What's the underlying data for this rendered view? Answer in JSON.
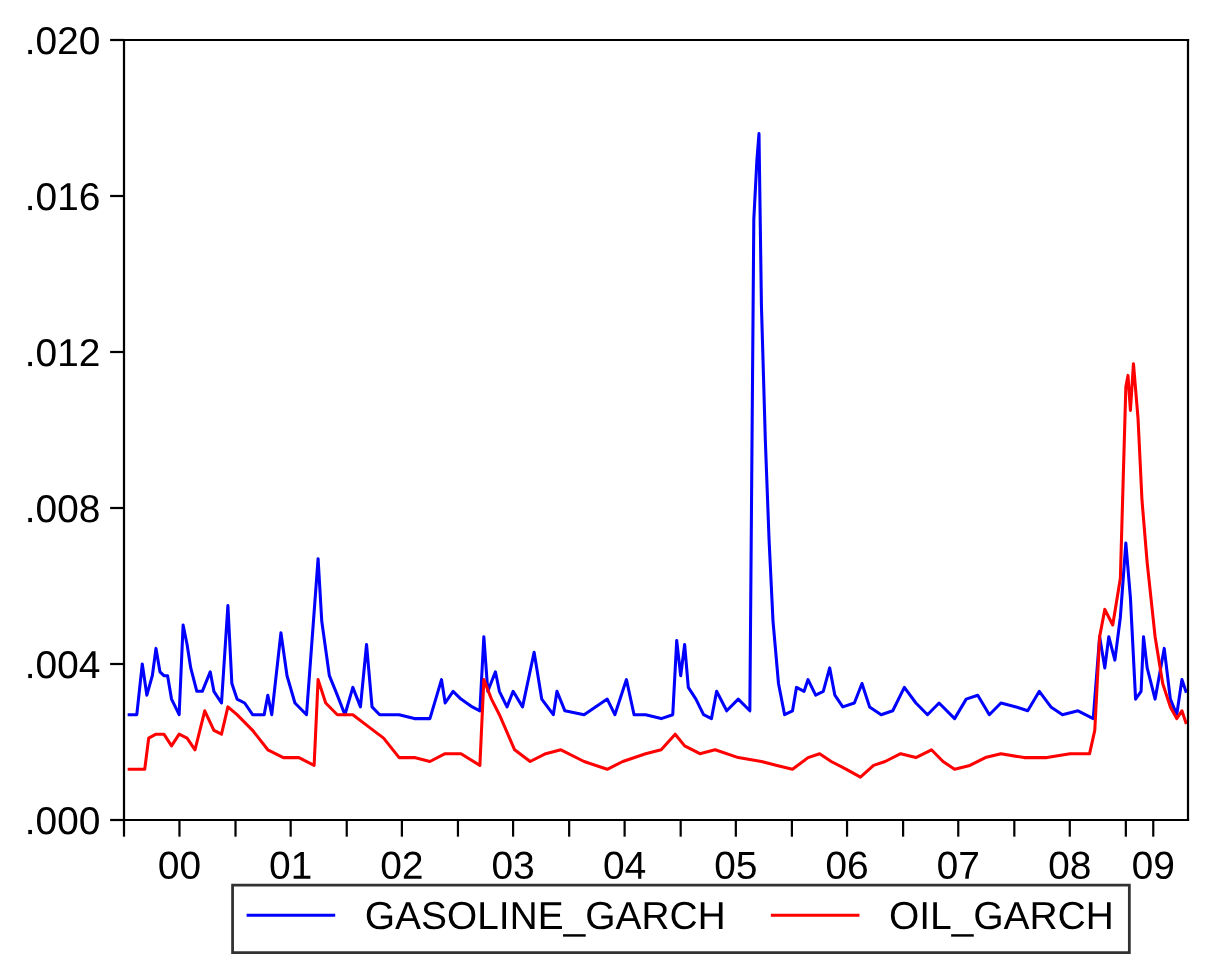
{
  "chart_data": {
    "type": "line",
    "legend": "bottom",
    "grid": false,
    "xlim": [
      "2000-01-01",
      "2009-07-24"
    ],
    "xticks": [
      {
        "value": "2000-01-01",
        "label": null
      },
      {
        "value": "2000-07-01",
        "label": "00"
      },
      {
        "value": "2001-01-01",
        "label": null
      },
      {
        "value": "2001-07-01",
        "label": "01"
      },
      {
        "value": "2002-01-01",
        "label": null
      },
      {
        "value": "2002-07-01",
        "label": "02"
      },
      {
        "value": "2003-01-01",
        "label": null
      },
      {
        "value": "2003-07-01",
        "label": "03"
      },
      {
        "value": "2004-01-01",
        "label": null
      },
      {
        "value": "2004-07-01",
        "label": "04"
      },
      {
        "value": "2005-01-01",
        "label": null
      },
      {
        "value": "2005-07-01",
        "label": "05"
      },
      {
        "value": "2006-01-01",
        "label": null
      },
      {
        "value": "2006-07-01",
        "label": "06"
      },
      {
        "value": "2007-01-01",
        "label": null
      },
      {
        "value": "2007-07-01",
        "label": "07"
      },
      {
        "value": "2008-01-01",
        "label": null
      },
      {
        "value": "2008-07-01",
        "label": "08"
      },
      {
        "value": "2009-01-01",
        "label": null
      },
      {
        "value": "2009-04-01",
        "label": "09"
      }
    ],
    "ylim": [
      0,
      0.02
    ],
    "yticks": [
      {
        "value": 0,
        "label": ".000"
      },
      {
        "value": 0.004,
        "label": ".004"
      },
      {
        "value": 0.008,
        "label": ".008"
      },
      {
        "value": 0.012,
        "label": ".012"
      },
      {
        "value": 0.016,
        "label": ".016"
      },
      {
        "value": 0.02,
        "label": ".020"
      }
    ],
    "series": [
      {
        "name": "GASOLINE_GARCH",
        "color": "#0000ff",
        "x": [
          "2000-01-18",
          "2000-02-12",
          "2000-03-01",
          "2000-03-16",
          "2000-04-03",
          "2000-04-15",
          "2000-04-28",
          "2000-05-11",
          "2000-05-23",
          "2000-06-05",
          "2000-06-30",
          "2000-07-13",
          "2000-07-26",
          "2000-08-07",
          "2000-08-27",
          "2000-09-14",
          "2000-10-10",
          "2000-10-22",
          "2000-11-16",
          "2000-12-07",
          "2000-12-20",
          "2001-01-06",
          "2001-01-31",
          "2001-02-26",
          "2001-04-05",
          "2001-04-17",
          "2001-04-30",
          "2001-05-30",
          "2001-06-19",
          "2001-07-15",
          "2001-08-22",
          "2001-09-29",
          "2001-10-11",
          "2001-11-05",
          "2001-12-01",
          "2001-12-26",
          "2002-01-21",
          "2002-02-15",
          "2002-03-07",
          "2002-03-25",
          "2002-04-19",
          "2002-05-15",
          "2002-06-22",
          "2002-08-11",
          "2002-10-01",
          "2002-11-08",
          "2002-11-20",
          "2002-12-16",
          "2003-01-11",
          "2003-02-17",
          "2003-03-14",
          "2003-03-27",
          "2003-04-09",
          "2003-05-04",
          "2003-05-17",
          "2003-06-11",
          "2003-07-01",
          "2003-08-01",
          "2003-09-08",
          "2003-10-03",
          "2003-11-10",
          "2003-11-22",
          "2003-12-18",
          "2004-02-19",
          "2004-05-05",
          "2004-05-30",
          "2004-07-07",
          "2004-08-01",
          "2004-09-08",
          "2004-10-29",
          "2004-12-06",
          "2004-12-19",
          "2005-01-01",
          "2005-01-14",
          "2005-01-26",
          "2005-02-20",
          "2005-03-17",
          "2005-04-12",
          "2005-04-29",
          "2005-06-01",
          "2005-07-09",
          "2005-08-16",
          "2005-08-29",
          "2005-09-08",
          "2005-09-15",
          "2005-09-23",
          "2005-10-06",
          "2005-10-18",
          "2005-10-31",
          "2005-11-18",
          "2005-12-08",
          "2006-01-03",
          "2006-01-16",
          "2006-02-10",
          "2006-02-23",
          "2006-03-20",
          "2006-04-14",
          "2006-05-05",
          "2006-05-22",
          "2006-06-17",
          "2006-07-25",
          "2006-08-19",
          "2006-09-13",
          "2006-10-21",
          "2006-11-28",
          "2007-01-05",
          "2007-02-12",
          "2007-03-22",
          "2007-04-29",
          "2007-06-19",
          "2007-07-27",
          "2007-09-03",
          "2007-10-11",
          "2007-11-18",
          "2008-01-07",
          "2008-02-14",
          "2008-03-23",
          "2008-04-30",
          "2008-06-07",
          "2008-07-28",
          "2008-09-16",
          "2008-10-07",
          "2008-10-24",
          "2008-11-06",
          "2008-11-26",
          "2008-12-14",
          "2009-01-01",
          "2009-01-16",
          "2009-02-02",
          "2009-02-20",
          "2009-02-28",
          "2009-03-12",
          "2009-04-07",
          "2009-05-07",
          "2009-05-27",
          "2009-06-17",
          "2009-07-04",
          "2009-07-17"
        ],
        "values": [
          0.0027,
          0.0027,
          0.004,
          0.0032,
          0.0037,
          0.0044,
          0.0038,
          0.0037,
          0.0037,
          0.0031,
          0.0027,
          0.005,
          0.0045,
          0.0039,
          0.0033,
          0.0033,
          0.0038,
          0.0033,
          0.003,
          0.0055,
          0.0035,
          0.0031,
          0.003,
          0.0027,
          0.0027,
          0.0032,
          0.0027,
          0.0048,
          0.0037,
          0.003,
          0.0027,
          0.0067,
          0.0051,
          0.0037,
          0.0032,
          0.0027,
          0.0034,
          0.0029,
          0.0045,
          0.0029,
          0.0027,
          0.0027,
          0.0027,
          0.0026,
          0.0026,
          0.0036,
          0.003,
          0.0033,
          0.0031,
          0.0029,
          0.0028,
          0.0047,
          0.0033,
          0.0038,
          0.0033,
          0.0029,
          0.0033,
          0.0029,
          0.0043,
          0.0031,
          0.0027,
          0.0033,
          0.0028,
          0.0027,
          0.0031,
          0.0027,
          0.0036,
          0.0027,
          0.0027,
          0.0026,
          0.0027,
          0.0046,
          0.0037,
          0.0045,
          0.0034,
          0.0031,
          0.0027,
          0.0026,
          0.0033,
          0.0028,
          0.0031,
          0.0028,
          0.0154,
          0.0169,
          0.0176,
          0.0132,
          0.0097,
          0.0072,
          0.0051,
          0.0035,
          0.0027,
          0.0028,
          0.0034,
          0.0033,
          0.0036,
          0.0032,
          0.0033,
          0.0039,
          0.0032,
          0.0029,
          0.003,
          0.0035,
          0.0029,
          0.0027,
          0.0028,
          0.0034,
          0.003,
          0.0027,
          0.003,
          0.0026,
          0.0031,
          0.0032,
          0.0027,
          0.003,
          0.0029,
          0.0028,
          0.0033,
          0.0029,
          0.0027,
          0.0028,
          0.0026,
          0.0047,
          0.0039,
          0.0047,
          0.0041,
          0.0052,
          0.0071,
          0.0057,
          0.0031,
          0.0033,
          0.0047,
          0.0039,
          0.0031,
          0.0044,
          0.0031,
          0.0027,
          0.0036,
          0.0033
        ]
      },
      {
        "name": "OIL_GARCH",
        "color": "#ff0000",
        "x": [
          "2000-01-18",
          "2000-02-12",
          "2000-03-09",
          "2000-03-22",
          "2000-04-15",
          "2000-05-11",
          "2000-06-05",
          "2000-06-30",
          "2000-07-26",
          "2000-08-21",
          "2000-09-22",
          "2000-10-22",
          "2000-11-16",
          "2000-12-07",
          "2001-01-06",
          "2001-02-26",
          "2001-04-17",
          "2001-06-07",
          "2001-07-28",
          "2001-09-16",
          "2001-09-29",
          "2001-10-24",
          "2001-12-01",
          "2002-01-21",
          "2002-03-12",
          "2002-05-02",
          "2002-06-22",
          "2002-08-11",
          "2002-10-01",
          "2002-11-20",
          "2003-01-11",
          "2003-03-14",
          "2003-03-27",
          "2003-04-21",
          "2003-05-17",
          "2003-07-06",
          "2003-08-26",
          "2003-10-16",
          "2003-12-05",
          "2004-02-19",
          "2004-05-05",
          "2004-06-25",
          "2004-09-08",
          "2004-10-29",
          "2004-12-14",
          "2005-01-14",
          "2005-03-05",
          "2005-04-24",
          "2005-07-09",
          "2005-09-23",
          "2005-11-13",
          "2006-01-03",
          "2006-02-23",
          "2006-04-02",
          "2006-05-10",
          "2006-06-29",
          "2006-08-14",
          "2006-09-26",
          "2006-11-03",
          "2006-12-24",
          "2007-02-12",
          "2007-04-04",
          "2007-05-12",
          "2007-06-19",
          "2007-08-08",
          "2007-09-28",
          "2007-11-18",
          "2008-02-02",
          "2008-04-17",
          "2008-07-02",
          "2008-09-04",
          "2008-09-21",
          "2008-10-07",
          "2008-10-24",
          "2008-11-19",
          "2008-12-14",
          "2009-01-01",
          "2009-01-08",
          "2009-01-16",
          "2009-01-26",
          "2009-02-10",
          "2009-02-23",
          "2009-03-12",
          "2009-04-07",
          "2009-05-02",
          "2009-05-27",
          "2009-06-17",
          "2009-07-04",
          "2009-07-17"
        ],
        "values": [
          0.0013,
          0.0013,
          0.0013,
          0.0021,
          0.0022,
          0.0022,
          0.0019,
          0.0022,
          0.0021,
          0.0018,
          0.0028,
          0.0023,
          0.0022,
          0.0029,
          0.0027,
          0.0023,
          0.0018,
          0.0016,
          0.0016,
          0.0014,
          0.0036,
          0.003,
          0.0027,
          0.0027,
          0.0024,
          0.0021,
          0.0016,
          0.0016,
          0.0015,
          0.0017,
          0.0017,
          0.0014,
          0.0036,
          0.0031,
          0.0027,
          0.0018,
          0.0015,
          0.0017,
          0.0018,
          0.0015,
          0.0013,
          0.0015,
          0.0017,
          0.0018,
          0.0022,
          0.0019,
          0.0017,
          0.0018,
          0.0016,
          0.0015,
          0.0014,
          0.0013,
          0.0016,
          0.0017,
          0.0015,
          0.0013,
          0.0011,
          0.0014,
          0.0015,
          0.0017,
          0.0016,
          0.0018,
          0.0015,
          0.0013,
          0.0014,
          0.0016,
          0.0017,
          0.0016,
          0.0016,
          0.0017,
          0.0017,
          0.0023,
          0.0047,
          0.0054,
          0.005,
          0.0062,
          0.0111,
          0.0114,
          0.0105,
          0.0117,
          0.0103,
          0.0082,
          0.0066,
          0.0047,
          0.0035,
          0.0029,
          0.0026,
          0.0028,
          0.0025
        ]
      }
    ]
  }
}
